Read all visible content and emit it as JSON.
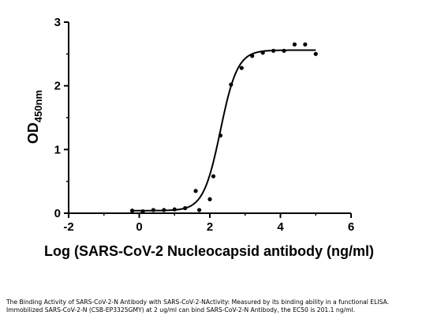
{
  "chart_data": {
    "type": "scatter",
    "title": "",
    "xlabel": "Log (SARS-CoV-2 Nucleocapsid antibody (ng/ml)",
    "ylabel": {
      "main": "OD",
      "subscript": "450nm"
    },
    "xlim": [
      -2,
      6
    ],
    "ylim": [
      0,
      3
    ],
    "xticks": [
      -2,
      0,
      2,
      4,
      6
    ],
    "yticks": [
      0,
      1,
      2,
      3
    ],
    "grid": false,
    "legend": "none",
    "series": [
      {
        "points": [
          {
            "x": -0.2,
            "y": 0.04
          },
          {
            "x": 0.1,
            "y": 0.03
          },
          {
            "x": 0.4,
            "y": 0.05
          },
          {
            "x": 0.7,
            "y": 0.05
          },
          {
            "x": 1.0,
            "y": 0.06
          },
          {
            "x": 1.3,
            "y": 0.08
          },
          {
            "x": 1.7,
            "y": 0.05
          },
          {
            "x": 2.0,
            "y": 0.22
          },
          {
            "x": 1.6,
            "y": 0.35
          },
          {
            "x": 2.1,
            "y": 0.58
          },
          {
            "x": 2.3,
            "y": 1.22
          },
          {
            "x": 2.6,
            "y": 2.02
          },
          {
            "x": 2.9,
            "y": 2.28
          },
          {
            "x": 3.2,
            "y": 2.47
          },
          {
            "x": 3.5,
            "y": 2.52
          },
          {
            "x": 3.8,
            "y": 2.55
          },
          {
            "x": 4.1,
            "y": 2.55
          },
          {
            "x": 4.4,
            "y": 2.65
          },
          {
            "x": 4.7,
            "y": 2.65
          },
          {
            "x": 5.0,
            "y": 2.5
          }
        ]
      }
    ],
    "fit_curve": {
      "bottom": 0.04,
      "top": 2.56,
      "log_ec50": 2.3,
      "hill_slope": 1.8,
      "x_range": [
        -0.2,
        5.0
      ]
    }
  },
  "caption": "The Binding Activity of SARS-CoV-2-N Antibody with SARS-CoV-2-NActivity: Measured by its binding ability in a functional ELISA. Immobilized SARS-CoV-2-N (CSB-EP3325GMY) at 2 ug/ml can bind SARS-CoV-2-N Antibody, the EC50 is 201.1 ng/ml."
}
